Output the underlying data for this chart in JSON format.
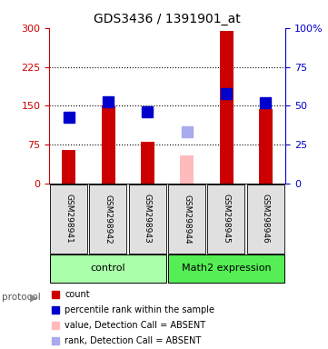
{
  "title": "GDS3436 / 1391901_at",
  "samples": [
    "GSM298941",
    "GSM298942",
    "GSM298943",
    "GSM298944",
    "GSM298945",
    "GSM298946"
  ],
  "group_labels": [
    "control",
    "Math2 expression"
  ],
  "group_colors": [
    "#aaffaa",
    "#55ee55"
  ],
  "bar_values": [
    65,
    150,
    80,
    null,
    295,
    143
  ],
  "bar_absent_values": [
    null,
    null,
    null,
    55,
    null,
    null
  ],
  "bar_color": "#cc0000",
  "bar_absent_color": "#ffbbbb",
  "percentile_values": [
    128,
    158,
    138,
    null,
    173,
    156
  ],
  "percentile_absent_values": [
    null,
    null,
    null,
    100,
    null,
    null
  ],
  "percentile_color": "#0000cc",
  "percentile_absent_color": "#aaaaee",
  "left_ylim": [
    0,
    300
  ],
  "right_ylim": [
    0,
    100
  ],
  "left_yticks": [
    0,
    75,
    150,
    225,
    300
  ],
  "right_yticks": [
    0,
    25,
    50,
    75,
    100
  ],
  "right_yticklabels": [
    "0",
    "25",
    "50",
    "75",
    "100%"
  ],
  "dotted_lines": [
    75,
    150,
    225
  ],
  "left_tick_color": "#cc0000",
  "right_tick_color": "#0000cc",
  "legend_items": [
    {
      "label": "count",
      "color": "#cc0000"
    },
    {
      "label": "percentile rank within the sample",
      "color": "#0000cc"
    },
    {
      "label": "value, Detection Call = ABSENT",
      "color": "#ffbbbb"
    },
    {
      "label": "rank, Detection Call = ABSENT",
      "color": "#aaaaee"
    }
  ],
  "protocol_label": "protocol",
  "bar_width": 0.35,
  "marker_size": 8
}
